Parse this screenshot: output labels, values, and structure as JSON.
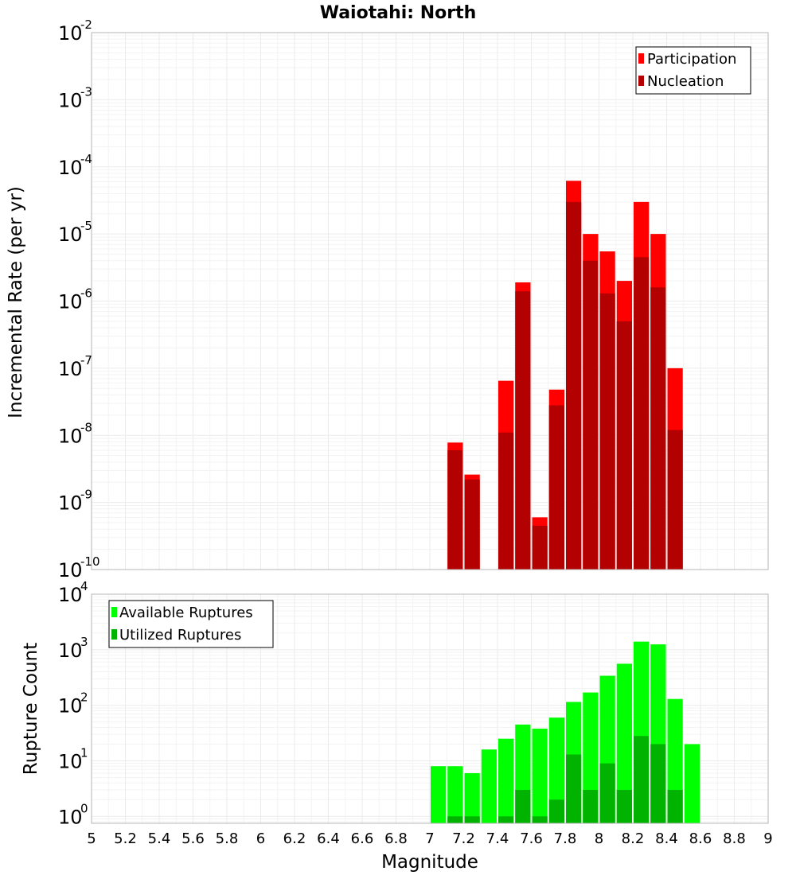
{
  "chart_data": [
    {
      "type": "bar",
      "title": "Waiotahi: North",
      "xlabel": "",
      "ylabel": "Incremental Rate (per yr)",
      "y_scale": "log",
      "ylim": [
        1e-10,
        0.01
      ],
      "xlim": [
        5,
        9
      ],
      "y_ticks": [
        {
          "base": "10",
          "exp": "-10"
        },
        {
          "base": "10",
          "exp": "-9"
        },
        {
          "base": "10",
          "exp": "-8"
        },
        {
          "base": "10",
          "exp": "-7"
        },
        {
          "base": "10",
          "exp": "-6"
        },
        {
          "base": "10",
          "exp": "-5"
        },
        {
          "base": "10",
          "exp": "-4"
        },
        {
          "base": "10",
          "exp": "-3"
        },
        {
          "base": "10",
          "exp": "-2"
        }
      ],
      "legend_position": "top-right",
      "series": [
        {
          "name": "Participation",
          "color": "#ff0000",
          "x": [
            7.15,
            7.25,
            7.45,
            7.55,
            7.65,
            7.75,
            7.85,
            7.95,
            8.05,
            8.15,
            8.25,
            8.35,
            8.45
          ],
          "values": [
            7.8e-09,
            2.6e-09,
            6.5e-08,
            1.9e-06,
            6e-10,
            4.8e-08,
            6.2e-05,
            1e-05,
            5.5e-06,
            2e-06,
            3e-05,
            1e-05,
            1e-07
          ]
        },
        {
          "name": "Nucleation",
          "color": "#b30000",
          "x": [
            7.15,
            7.25,
            7.45,
            7.55,
            7.65,
            7.75,
            7.85,
            7.95,
            8.05,
            8.15,
            8.25,
            8.35,
            8.45
          ],
          "values": [
            6e-09,
            2.2e-09,
            1.1e-08,
            1.4e-06,
            4.5e-10,
            2.8e-08,
            3e-05,
            4e-06,
            1.3e-06,
            5e-07,
            4.5e-06,
            1.6e-06,
            1.2e-08
          ]
        }
      ]
    },
    {
      "type": "bar",
      "title": "",
      "xlabel": "Magnitude",
      "ylabel": "Rupture Count",
      "y_scale": "log",
      "ylim": [
        0.75,
        10000.0
      ],
      "xlim": [
        5,
        9
      ],
      "x_ticks": [
        "5",
        "5.2",
        "5.4",
        "5.6",
        "5.8",
        "6",
        "6.2",
        "6.4",
        "6.6",
        "6.8",
        "7",
        "7.2",
        "7.4",
        "7.6",
        "7.8",
        "8",
        "8.2",
        "8.4",
        "8.6",
        "8.8",
        "9"
      ],
      "y_ticks": [
        {
          "base": "10",
          "exp": "0"
        },
        {
          "base": "10",
          "exp": "1"
        },
        {
          "base": "10",
          "exp": "2"
        },
        {
          "base": "10",
          "exp": "3"
        },
        {
          "base": "10",
          "exp": "4"
        }
      ],
      "legend_position": "top-left",
      "series": [
        {
          "name": "Available Ruptures",
          "color": "#00ff00",
          "x": [
            7.05,
            7.15,
            7.25,
            7.35,
            7.45,
            7.55,
            7.65,
            7.75,
            7.85,
            7.95,
            8.05,
            8.15,
            8.25,
            8.35,
            8.45,
            8.55
          ],
          "values": [
            8,
            8,
            6,
            16,
            25,
            45,
            38,
            60,
            115,
            170,
            340,
            560,
            1400,
            1250,
            130,
            20
          ]
        },
        {
          "name": "Utilized Ruptures",
          "color": "#00b300",
          "x": [
            7.15,
            7.25,
            7.45,
            7.55,
            7.65,
            7.75,
            7.85,
            7.95,
            8.05,
            8.15,
            8.25,
            8.35,
            8.45
          ],
          "values": [
            1,
            1,
            1,
            3,
            1,
            2,
            13,
            3,
            9,
            3,
            28,
            20,
            3
          ]
        }
      ]
    }
  ]
}
